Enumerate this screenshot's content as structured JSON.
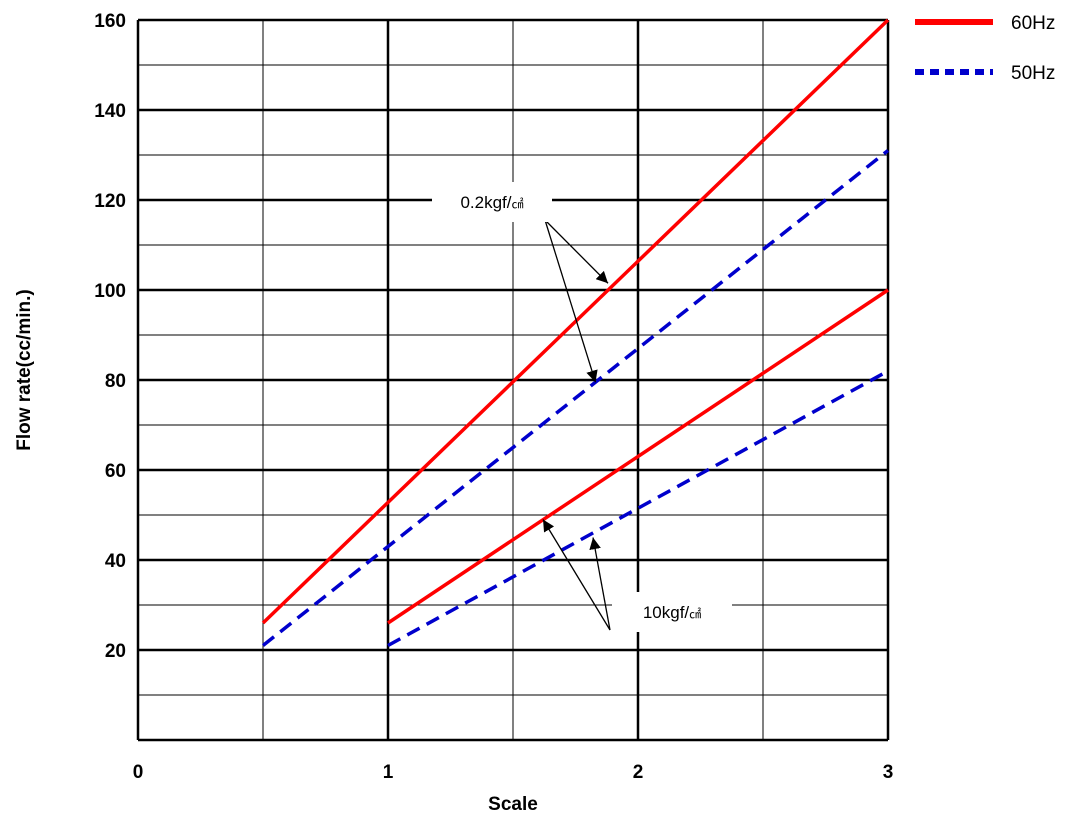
{
  "chart_data": {
    "type": "line",
    "title": "",
    "xlabel": "Scale",
    "ylabel": "Flow rate(cc/min.)",
    "xlim": [
      0,
      3
    ],
    "ylim": [
      0,
      160
    ],
    "x_ticks": [
      "0",
      "1",
      "2",
      "3"
    ],
    "y_ticks": [
      "20",
      "40",
      "60",
      "80",
      "100",
      "120",
      "140",
      "160"
    ],
    "grid": true,
    "legend_position": "top-right outside",
    "legend": [
      {
        "label": "60Hz",
        "style": "solid",
        "color": "#ff0000"
      },
      {
        "label": "50Hz",
        "style": "dashed",
        "color": "#0000cc"
      }
    ],
    "series": [
      {
        "freq": "60Hz",
        "pressure": "0.2kgf/㎠",
        "color": "#ff0000",
        "style": "solid",
        "x": [
          0.5,
          3
        ],
        "y": [
          26,
          160
        ]
      },
      {
        "freq": "50Hz",
        "pressure": "0.2kgf/㎠",
        "color": "#0000cc",
        "style": "dashed",
        "x": [
          0.5,
          3
        ],
        "y": [
          21,
          131
        ]
      },
      {
        "freq": "60Hz",
        "pressure": "10kgf/㎠",
        "color": "#ff0000",
        "style": "solid",
        "x": [
          1,
          3
        ],
        "y": [
          26,
          100
        ]
      },
      {
        "freq": "50Hz",
        "pressure": "10kgf/㎠",
        "color": "#0000cc",
        "style": "dashed",
        "x": [
          1,
          3
        ],
        "y": [
          21,
          82
        ]
      }
    ],
    "annotations": [
      {
        "text": "0.2kgf/",
        "unit": "㎠",
        "points_to": [
          {
            "x": 1.88,
            "y": 101.5
          },
          {
            "x": 1.83,
            "y": 79.5
          }
        ]
      },
      {
        "text": "10kgf/",
        "unit": "㎠",
        "points_to": [
          {
            "x": 1.62,
            "y": 49
          },
          {
            "x": 1.82,
            "y": 45
          }
        ]
      }
    ]
  }
}
